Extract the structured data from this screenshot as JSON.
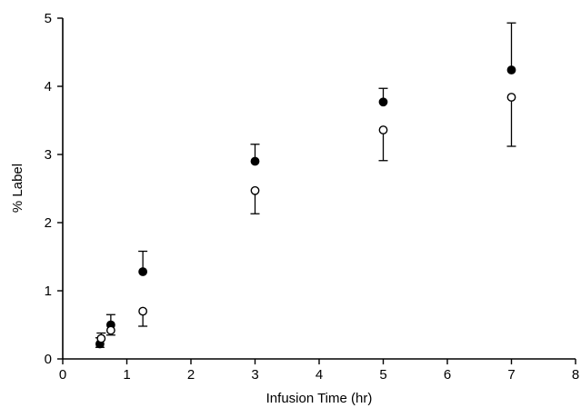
{
  "chart_data": {
    "type": "scatter",
    "title": "",
    "xlabel": "Infusion Time (hr)",
    "ylabel": "% Label",
    "xlim": [
      0,
      8
    ],
    "ylim": [
      0,
      5
    ],
    "x_ticks": [
      "0",
      "1",
      "2",
      "3",
      "4",
      "5",
      "6",
      "7",
      "8"
    ],
    "y_ticks": [
      "0",
      "1",
      "2",
      "3",
      "4",
      "5"
    ],
    "grid": false,
    "series": [
      {
        "marker": "filled-circle",
        "color": "#000000",
        "points": [
          {
            "x": 0.58,
            "y": 0.22,
            "err_low": 0.17,
            "err_high": 0.31
          },
          {
            "x": 0.75,
            "y": 0.5,
            "err_high": 0.65
          },
          {
            "x": 1.25,
            "y": 1.28,
            "err_high": 1.58
          },
          {
            "x": 3.0,
            "y": 2.9,
            "err_high": 3.15
          },
          {
            "x": 5.0,
            "y": 3.77,
            "err_high": 3.97
          },
          {
            "x": 7.0,
            "y": 4.24,
            "err_high": 4.93
          }
        ]
      },
      {
        "marker": "open-circle",
        "color": "#000000",
        "points": [
          {
            "x": 0.6,
            "y": 0.3,
            "err_high": 0.38
          },
          {
            "x": 0.75,
            "y": 0.42,
            "err_low": 0.35
          },
          {
            "x": 1.25,
            "y": 0.7,
            "err_low": 0.48
          },
          {
            "x": 3.0,
            "y": 2.47,
            "err_low": 2.13
          },
          {
            "x": 5.0,
            "y": 3.36,
            "err_low": 2.91
          },
          {
            "x": 7.0,
            "y": 3.84,
            "err_low": 3.12
          }
        ]
      }
    ]
  }
}
